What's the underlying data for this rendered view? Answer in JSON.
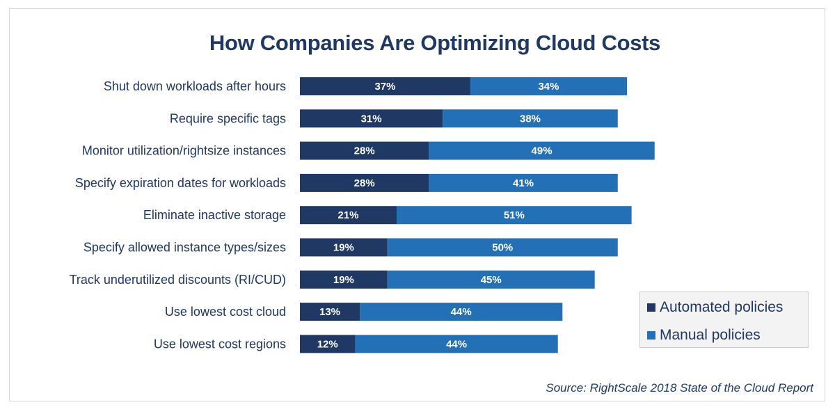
{
  "chart_data": {
    "type": "bar",
    "orientation": "horizontal",
    "stacked": true,
    "title": "How Companies Are Optimizing Cloud Costs",
    "xlabel": "",
    "ylabel": "",
    "xlim": [
      0,
      100
    ],
    "grid": false,
    "legend_position": "bottom-right",
    "categories": [
      "Shut down workloads after hours",
      "Require specific tags",
      "Monitor utilization/rightsize instances",
      "Specify expiration dates for workloads",
      "Eliminate inactive storage",
      "Specify allowed instance types/sizes",
      "Track underutilized discounts (RI/CUD)",
      "Use lowest cost cloud",
      "Use lowest cost regions"
    ],
    "series": [
      {
        "name": "Automated policies",
        "color": "#203864",
        "values": [
          37,
          31,
          28,
          28,
          21,
          19,
          19,
          13,
          12
        ]
      },
      {
        "name": "Manual policies",
        "color": "#2470b6",
        "values": [
          34,
          38,
          49,
          41,
          51,
          50,
          45,
          44,
          44
        ]
      }
    ],
    "value_suffix": "%",
    "source": "Source: RightScale 2018 State of the Cloud Report"
  }
}
